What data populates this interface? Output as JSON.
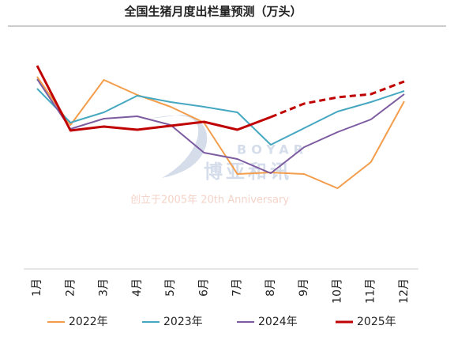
{
  "chart_data": {
    "type": "line",
    "title": "全国生猪月度出栏量预测（万头）",
    "categories": [
      "1月",
      "2月",
      "3月",
      "4月",
      "5月",
      "6月",
      "7月",
      "8月",
      "9月",
      "10月",
      "11月",
      "12月"
    ],
    "series": [
      {
        "name": "2022年",
        "color": "#f39c4a",
        "values": [
          243,
          182,
          239,
          220,
          205,
          185,
          120,
          122,
          120,
          102,
          135,
          212
        ]
      },
      {
        "name": "2023年",
        "color": "#45a8c0",
        "values": [
          228,
          185,
          198,
          219,
          211,
          205,
          198,
          157,
          178,
          199,
          211,
          225
        ]
      },
      {
        "name": "2024年",
        "color": "#7d5ba0",
        "values": [
          240,
          177,
          190,
          193,
          182,
          147,
          139,
          121,
          154,
          173,
          189,
          221
        ]
      },
      {
        "name": "2025年",
        "color": "#c00000",
        "values": [
          257,
          175,
          180,
          176,
          181,
          186,
          176,
          192,
          209,
          217,
          221,
          237
        ],
        "dashed_from": "8月"
      }
    ],
    "ylim": [
      0,
      300
    ],
    "watermark": [
      "BOYAR",
      "博亚和讯",
      "创立于2005年 20th Anniversary"
    ]
  }
}
